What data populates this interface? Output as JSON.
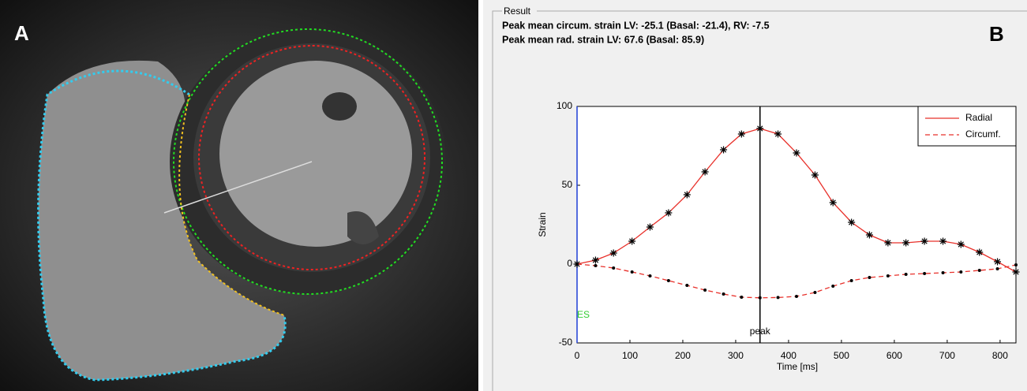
{
  "panel_labels": {
    "a": "A",
    "b": "B"
  },
  "result": {
    "title": "Result",
    "lines": [
      "Peak mean circum. strain LV: -25.1 (Basal: -21.4), RV: -7.5",
      "Peak mean rad. strain LV: 67.6 (Basal: 85.9)"
    ]
  },
  "chart_data": {
    "type": "line",
    "xlabel": "Time [ms]",
    "ylabel": "Strain",
    "x": [
      0,
      35,
      69,
      104,
      138,
      173,
      208,
      242,
      277,
      311,
      346,
      380,
      415,
      450,
      484,
      519,
      553,
      588,
      622,
      657,
      692,
      726,
      761,
      795,
      830
    ],
    "series": [
      {
        "name": "Radial",
        "color": "#e8302a",
        "style": "solid",
        "marker": "star",
        "values": [
          0,
          2.5,
          7,
          14.5,
          23.5,
          32.5,
          44,
          58.5,
          72.5,
          82.5,
          86,
          82.5,
          70.5,
          56.5,
          39,
          26.5,
          18.5,
          13.5,
          13.5,
          14.5,
          14.5,
          12.5,
          7.5,
          1.5,
          -5
        ]
      },
      {
        "name": "Circumf.",
        "color": "#e8302a",
        "style": "dashed",
        "marker": "dot",
        "values": [
          0,
          -1,
          -2.5,
          -5,
          -7.5,
          -10.5,
          -13.5,
          -16.5,
          -19,
          -21,
          -21.4,
          -21.2,
          -20.5,
          -18,
          -14,
          -10.5,
          -8.5,
          -7.5,
          -6.5,
          -6,
          -5.5,
          -5,
          -4,
          -3,
          -0.5
        ]
      }
    ],
    "xlim": [
      0,
      830
    ],
    "ylim": [
      -50,
      100
    ],
    "xticks": [
      0,
      100,
      200,
      300,
      400,
      500,
      600,
      700,
      800
    ],
    "yticks": [
      -50,
      0,
      50,
      100
    ],
    "annotations": [
      {
        "text": "ES",
        "x": 0,
        "color": "#33cc33",
        "line_color": "#1f3fd6"
      },
      {
        "text": "peak",
        "x": 346,
        "color": "#000000",
        "line_color": "#000000"
      }
    ],
    "legend": "upper right"
  }
}
